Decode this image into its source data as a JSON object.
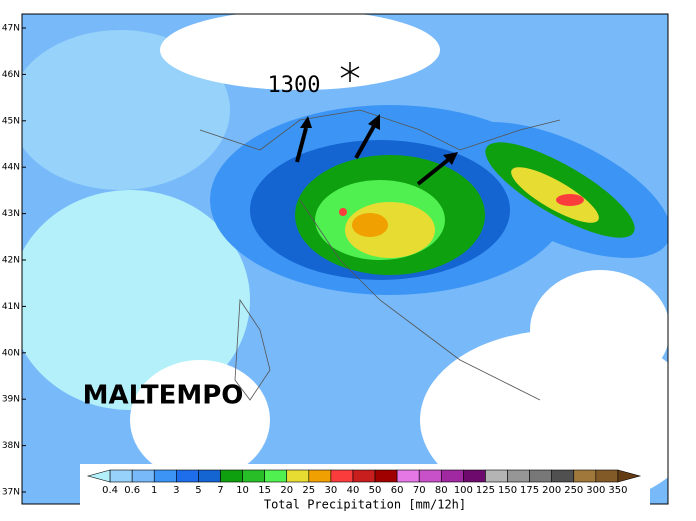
{
  "map": {
    "latitudes": [
      "47N",
      "46N",
      "45N",
      "44N",
      "43N",
      "42N",
      "41N",
      "40N",
      "39N",
      "38N",
      "37N"
    ],
    "annotation_height": "1300",
    "annotation_title": "MALTEMPO",
    "legend": {
      "title": "Total Precipitation [mm/12h]",
      "levels": [
        "0.4",
        "0.6",
        "1",
        "3",
        "5",
        "7",
        "10",
        "15",
        "20",
        "25",
        "30",
        "40",
        "50",
        "60",
        "70",
        "80",
        "100",
        "125",
        "150",
        "175",
        "200",
        "250",
        "300",
        "350"
      ],
      "colors": [
        "#b4f0fa",
        "#96d2fa",
        "#78b9fa",
        "#3c95f5",
        "#1e6eeb",
        "#1464d2",
        "#0fa00f",
        "#28be28",
        "#50f050",
        "#e6dc32",
        "#f0a000",
        "#fa3c3c",
        "#c81e1e",
        "#a00000",
        "#e678e6",
        "#c850c8",
        "#a028a0",
        "#6e0a6e",
        "#b4b4b4",
        "#969696",
        "#787878",
        "#505050",
        "#a0783c",
        "#825a28",
        "#643c14"
      ]
    }
  }
}
